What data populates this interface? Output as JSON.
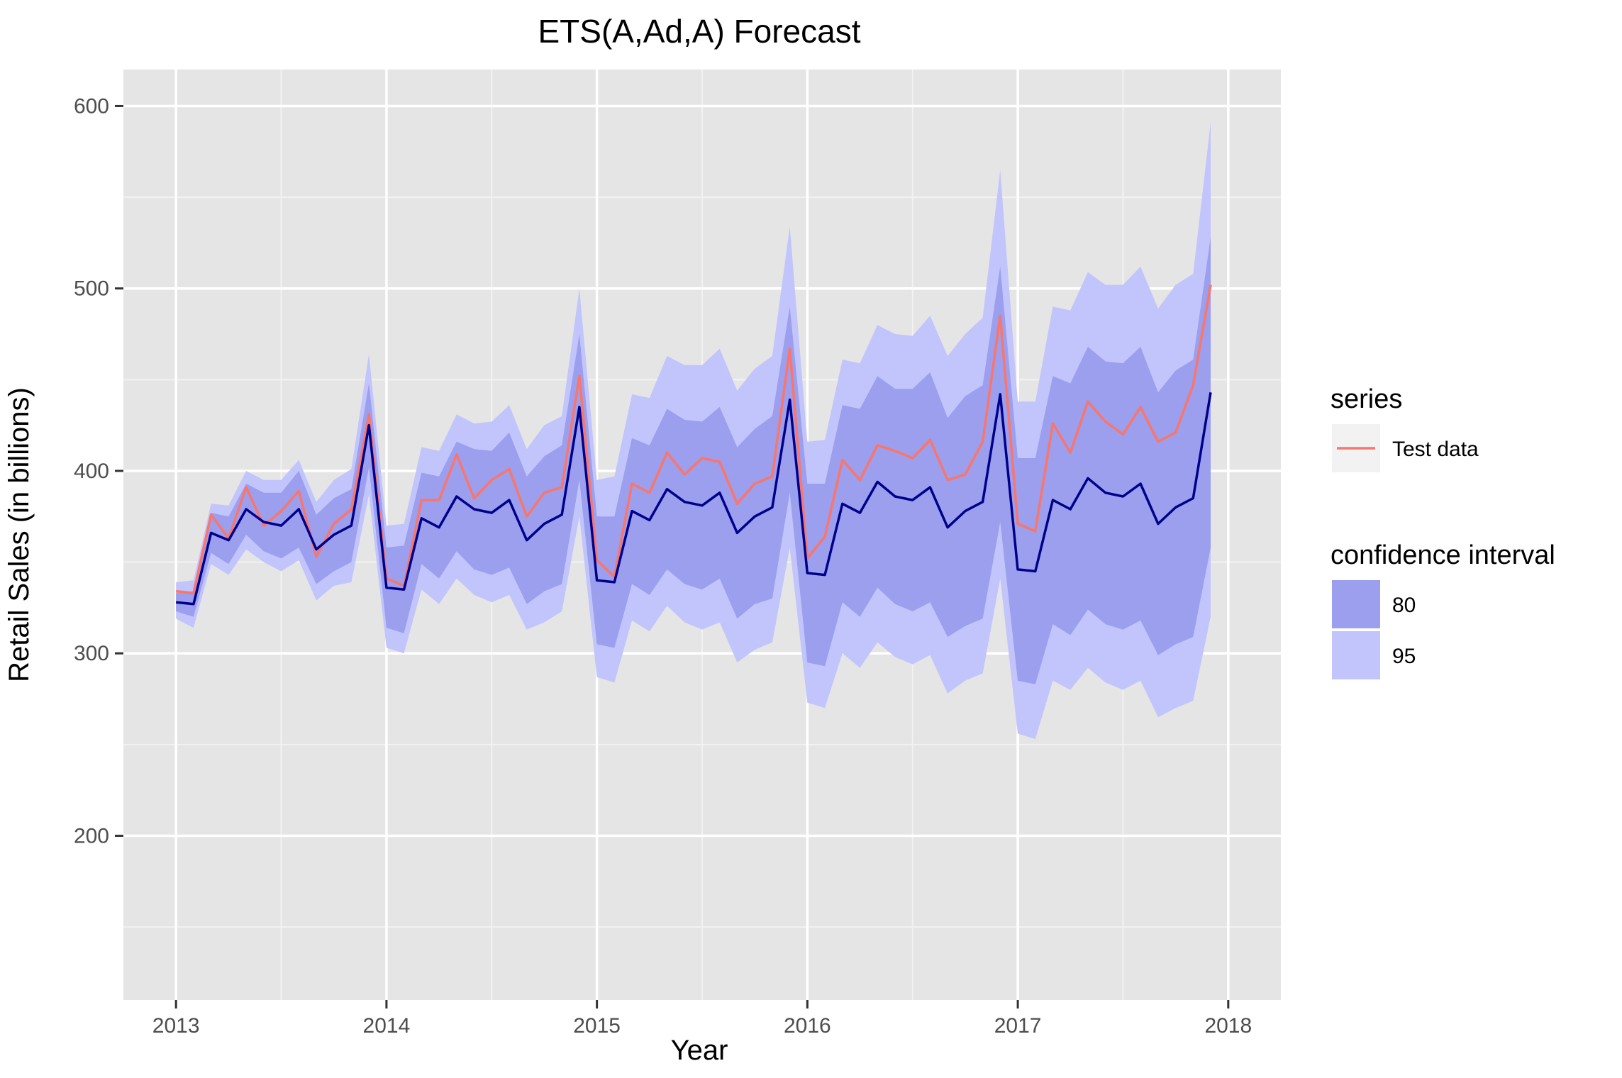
{
  "chart_data": {
    "type": "line",
    "title": "ETS(A,Ad,A) Forecast",
    "xlabel": "Year",
    "ylabel": "Retail Sales (in billions)",
    "xlim": [
      2012.75,
      2018.25
    ],
    "ylim": [
      110,
      620
    ],
    "x_ticks": [
      2013,
      2014,
      2015,
      2016,
      2017,
      2018
    ],
    "x_tick_labels": [
      "2013",
      "2014",
      "2015",
      "2016",
      "2017",
      "2018"
    ],
    "y_ticks": [
      200,
      300,
      400,
      500,
      600
    ],
    "y_tick_labels": [
      "200",
      "300",
      "400",
      "500",
      "600"
    ],
    "grid": true,
    "x_start": 2013.0,
    "x_step": 0.08333,
    "series": [
      {
        "name": "Test data",
        "color": "#f8766d",
        "values": [
          334,
          333,
          376,
          363,
          391,
          370,
          378,
          389,
          353,
          371,
          379,
          431,
          341,
          337,
          384,
          384,
          409,
          385,
          395,
          401,
          375,
          388,
          391,
          452,
          351,
          342,
          393,
          388,
          410,
          398,
          407,
          405,
          382,
          393,
          397,
          467,
          352,
          364,
          406,
          395,
          414,
          411,
          407,
          417,
          395,
          398,
          416,
          485,
          371,
          367,
          426,
          410,
          438,
          427,
          420,
          435,
          416,
          421,
          447,
          502
        ]
      },
      {
        "name": "",
        "color": "#00008b",
        "values": [
          328,
          327,
          366,
          362,
          379,
          372,
          370,
          379,
          357,
          365,
          370,
          425,
          336,
          335,
          374,
          369,
          386,
          379,
          377,
          384,
          362,
          371,
          376,
          435,
          340,
          339,
          378,
          373,
          390,
          383,
          381,
          388,
          366,
          375,
          380,
          439,
          344,
          343,
          382,
          377,
          394,
          386,
          384,
          391,
          369,
          378,
          383,
          442,
          346,
          345,
          384,
          379,
          396,
          388,
          386,
          393,
          371,
          380,
          385,
          443
        ]
      }
    ],
    "bands": {
      "80": {
        "lower": [
          323,
          320,
          355,
          349,
          365,
          356,
          352,
          358,
          338,
          345,
          350,
          402,
          314,
          311,
          349,
          341,
          356,
          346,
          343,
          347,
          327,
          334,
          338,
          395,
          305,
          303,
          338,
          332,
          346,
          338,
          335,
          341,
          319,
          327,
          330,
          388,
          295,
          293,
          328,
          320,
          336,
          327,
          323,
          328,
          309,
          315,
          319,
          372,
          285,
          283,
          316,
          310,
          324,
          316,
          313,
          318,
          299,
          305,
          309,
          358
        ],
        "upper": [
          333,
          334,
          377,
          375,
          393,
          388,
          388,
          400,
          376,
          385,
          390,
          448,
          358,
          359,
          399,
          397,
          416,
          412,
          411,
          421,
          397,
          408,
          414,
          475,
          375,
          375,
          418,
          414,
          434,
          428,
          427,
          435,
          413,
          423,
          430,
          490,
          393,
          393,
          436,
          434,
          452,
          445,
          445,
          454,
          429,
          441,
          447,
          512,
          407,
          407,
          452,
          448,
          468,
          460,
          459,
          468,
          443,
          455,
          461,
          528
        ]
      },
      "95": {
        "lower": [
          319,
          314,
          349,
          343,
          357,
          350,
          345,
          351,
          329,
          337,
          339,
          387,
          303,
          300,
          335,
          327,
          341,
          332,
          328,
          332,
          313,
          317,
          323,
          375,
          287,
          284,
          318,
          312,
          326,
          317,
          313,
          317,
          295,
          302,
          306,
          358,
          273,
          270,
          300,
          292,
          306,
          298,
          294,
          299,
          278,
          285,
          289,
          341,
          256,
          253,
          285,
          280,
          292,
          284,
          280,
          285,
          265,
          270,
          274,
          320
        ],
        "upper": [
          339,
          340,
          382,
          381,
          400,
          395,
          395,
          406,
          383,
          395,
          401,
          464,
          370,
          371,
          413,
          411,
          431,
          426,
          427,
          436,
          412,
          425,
          430,
          500,
          395,
          397,
          442,
          440,
          463,
          458,
          458,
          467,
          444,
          456,
          463,
          534,
          416,
          417,
          461,
          459,
          480,
          475,
          474,
          485,
          463,
          475,
          484,
          565,
          438,
          438,
          490,
          488,
          509,
          502,
          502,
          512,
          489,
          502,
          508,
          591
        ]
      }
    },
    "legend": {
      "placement": "right",
      "series_title": "series",
      "series_entries": [
        "Test data"
      ],
      "ci_title": "confidence interval",
      "ci_entries": [
        "80",
        "95"
      ],
      "ci_colors": {
        "80": "#9b9fee",
        "95": "#c2c5fb"
      }
    },
    "colors": {
      "panel": "#e5e5e5",
      "grid_major": "#ffffff",
      "test_data": "#f8766d",
      "forecast": "#00008b"
    }
  }
}
